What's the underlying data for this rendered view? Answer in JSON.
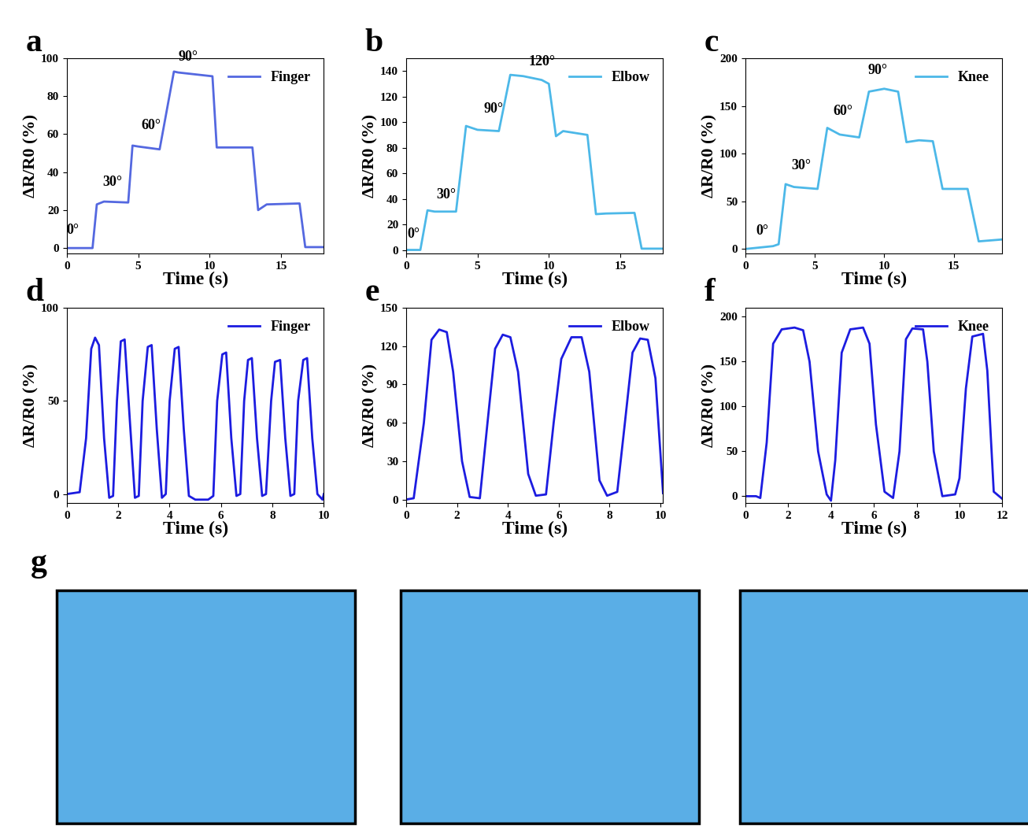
{
  "chart_data": [
    {
      "type": "line",
      "title": "a",
      "xlabel": "Time (s)",
      "ylabel": "ΔR/R0 (%)",
      "x": [
        0,
        1.8,
        2.1,
        2.6,
        4.3,
        4.6,
        5.0,
        6.5,
        7.5,
        7.8,
        9.0,
        10.2,
        10.5,
        11.0,
        13.0,
        13.4,
        14.0,
        16.3,
        16.7,
        18.0
      ],
      "series": [
        {
          "name": "Finger",
          "color": "#5468e0",
          "values": [
            0,
            0,
            23,
            24.5,
            24,
            54,
            53.5,
            52,
            93,
            92.5,
            91.5,
            90.5,
            53,
            53,
            53,
            20,
            23,
            23.5,
            0.5,
            0.5
          ]
        }
      ],
      "xlim": [
        0,
        18
      ],
      "ylim": [
        -3,
        100
      ],
      "xticks": [
        0,
        5,
        10,
        15
      ],
      "yticks": [
        0,
        20,
        40,
        60,
        80,
        100
      ],
      "legend": "upper right",
      "grid": false,
      "annotations": [
        {
          "text": "0°",
          "x": 0.4,
          "y": 6
        },
        {
          "text": "30°",
          "x": 3.2,
          "y": 31
        },
        {
          "text": "60°",
          "x": 5.9,
          "y": 61
        },
        {
          "text": "90°",
          "x": 8.5,
          "y": 97
        }
      ]
    },
    {
      "type": "line",
      "title": "b",
      "xlabel": "Time (s)",
      "ylabel": "ΔR/R0 (%)",
      "x": [
        0,
        1.0,
        1.5,
        2.0,
        3.5,
        4.2,
        5.0,
        6.5,
        7.3,
        8.2,
        9.5,
        10.0,
        10.5,
        11.0,
        12.7,
        13.3,
        14.0,
        16.0,
        16.5,
        18.0
      ],
      "series": [
        {
          "name": "Elbow",
          "color": "#4cb8e8",
          "values": [
            0,
            0,
            31,
            30,
            30,
            97,
            94,
            93,
            137,
            136,
            133,
            130,
            89,
            93,
            90,
            28,
            28.5,
            29,
            1,
            1
          ]
        }
      ],
      "xlim": [
        0,
        18
      ],
      "ylim": [
        -3,
        150
      ],
      "xticks": [
        0,
        5,
        10,
        15
      ],
      "yticks": [
        0,
        20,
        40,
        60,
        80,
        100,
        120,
        140
      ],
      "legend": "upper right",
      "grid": false,
      "annotations": [
        {
          "text": "0°",
          "x": 0.5,
          "y": 7
        },
        {
          "text": "30°",
          "x": 2.8,
          "y": 38
        },
        {
          "text": "90°",
          "x": 6.1,
          "y": 105
        },
        {
          "text": "120°",
          "x": 9.5,
          "y": 142
        }
      ]
    },
    {
      "type": "line",
      "title": "c",
      "xlabel": "Time (s)",
      "ylabel": "ΔR/R0 (%)",
      "x": [
        0,
        2.0,
        2.4,
        2.9,
        3.5,
        5.2,
        5.9,
        6.8,
        8.2,
        8.9,
        10.0,
        11.0,
        11.6,
        12.5,
        13.5,
        14.2,
        16.0,
        16.8,
        18.5
      ],
      "series": [
        {
          "name": "Knee",
          "color": "#4cb8e8",
          "values": [
            0,
            3,
            5,
            68,
            65,
            63,
            127,
            120,
            117,
            165,
            168,
            165,
            112,
            114,
            113,
            63,
            63,
            8,
            10
          ]
        }
      ],
      "xlim": [
        0,
        18.5
      ],
      "ylim": [
        -5,
        200
      ],
      "xticks": [
        0,
        5,
        10,
        15
      ],
      "yticks": [
        0,
        50,
        100,
        150,
        200
      ],
      "legend": "upper right",
      "grid": false,
      "annotations": [
        {
          "text": "0°",
          "x": 1.2,
          "y": 12
        },
        {
          "text": "30°",
          "x": 4.0,
          "y": 80
        },
        {
          "text": "60°",
          "x": 7.0,
          "y": 137
        },
        {
          "text": "90°",
          "x": 9.5,
          "y": 180
        }
      ]
    },
    {
      "type": "line",
      "title": "d",
      "xlabel": "Time (s)",
      "ylabel": "ΔR/R0 (%)",
      "x": [
        0,
        0.5,
        0.75,
        0.95,
        1.1,
        1.25,
        1.45,
        1.65,
        1.8,
        1.95,
        2.1,
        2.25,
        2.45,
        2.65,
        2.8,
        2.95,
        3.15,
        3.3,
        3.5,
        3.7,
        3.85,
        4.0,
        4.2,
        4.35,
        4.55,
        4.75,
        5.0,
        5.5,
        5.7,
        5.85,
        6.05,
        6.2,
        6.4,
        6.6,
        6.75,
        6.9,
        7.05,
        7.2,
        7.4,
        7.6,
        7.75,
        7.95,
        8.1,
        8.3,
        8.5,
        8.7,
        8.85,
        9.0,
        9.2,
        9.35,
        9.55,
        9.75,
        9.95,
        10.0
      ],
      "series": [
        {
          "name": "Finger",
          "color": "#1c1ce0",
          "values": [
            0,
            1,
            30,
            78,
            84,
            80,
            30,
            -2,
            -1,
            50,
            82,
            83,
            40,
            -2,
            -1,
            50,
            79,
            80,
            35,
            -2,
            0,
            50,
            78,
            79,
            35,
            -1,
            -3,
            -3,
            -1,
            50,
            75,
            76,
            30,
            -1,
            0,
            50,
            72,
            73,
            30,
            -1,
            0,
            50,
            71,
            72,
            30,
            -1,
            0,
            50,
            72,
            73,
            30,
            0,
            -3,
            0
          ]
        }
      ],
      "xlim": [
        0,
        10
      ],
      "ylim": [
        -5,
        100
      ],
      "xticks": [
        0,
        2,
        4,
        6,
        8,
        10
      ],
      "yticks": [
        0,
        50,
        100
      ],
      "legend": "upper right",
      "grid": false
    },
    {
      "type": "line",
      "title": "e",
      "xlabel": "Time (s)",
      "ylabel": "ΔR/R0 (%)",
      "x": [
        0,
        0.3,
        0.7,
        1.0,
        1.3,
        1.6,
        1.85,
        2.2,
        2.5,
        2.9,
        3.2,
        3.5,
        3.8,
        4.1,
        4.4,
        4.8,
        5.1,
        5.5,
        5.8,
        6.1,
        6.5,
        6.9,
        7.2,
        7.6,
        7.9,
        8.3,
        8.6,
        8.9,
        9.2,
        9.5,
        9.8,
        10.1
      ],
      "series": [
        {
          "name": "Elbow",
          "color": "#1c1ce0",
          "values": [
            0,
            1,
            60,
            125,
            133,
            131,
            100,
            30,
            2,
            1,
            60,
            118,
            129,
            127,
            100,
            20,
            3,
            4,
            60,
            110,
            127,
            127,
            100,
            15,
            3,
            6,
            60,
            115,
            126,
            125,
            95,
            5
          ]
        }
      ],
      "xlim": [
        0,
        10.1
      ],
      "ylim": [
        -3,
        150
      ],
      "xticks": [
        0,
        2,
        4,
        6,
        8,
        10
      ],
      "yticks": [
        0,
        30,
        60,
        90,
        120,
        150
      ],
      "legend": "upper right",
      "grid": false
    },
    {
      "type": "line",
      "title": "f",
      "xlabel": "Time (s)",
      "ylabel": "ΔR/R0 (%)",
      "x": [
        0,
        0.5,
        0.7,
        1.0,
        1.3,
        1.7,
        2.3,
        2.7,
        3.0,
        3.4,
        3.8,
        4.0,
        4.2,
        4.5,
        4.9,
        5.5,
        5.8,
        6.1,
        6.5,
        6.9,
        7.2,
        7.5,
        7.8,
        8.3,
        8.5,
        8.8,
        9.2,
        9.8,
        10.0,
        10.3,
        10.6,
        11.1,
        11.3,
        11.6,
        12.0
      ],
      "series": [
        {
          "name": "Knee",
          "color": "#1c1ce0",
          "values": [
            0,
            0,
            -2,
            60,
            170,
            186,
            188,
            185,
            150,
            50,
            2,
            -5,
            40,
            160,
            186,
            188,
            170,
            80,
            5,
            -2,
            50,
            175,
            187,
            186,
            150,
            50,
            0,
            2,
            20,
            120,
            178,
            181,
            140,
            5,
            -3
          ]
        }
      ],
      "xlim": [
        0,
        12
      ],
      "ylim": [
        -8,
        210
      ],
      "xticks": [
        0,
        2,
        4,
        6,
        8,
        10,
        12
      ],
      "yticks": [
        0,
        50,
        100,
        150,
        200
      ],
      "legend": "upper right",
      "grid": false
    }
  ],
  "photo_panel": {
    "label": "g"
  }
}
